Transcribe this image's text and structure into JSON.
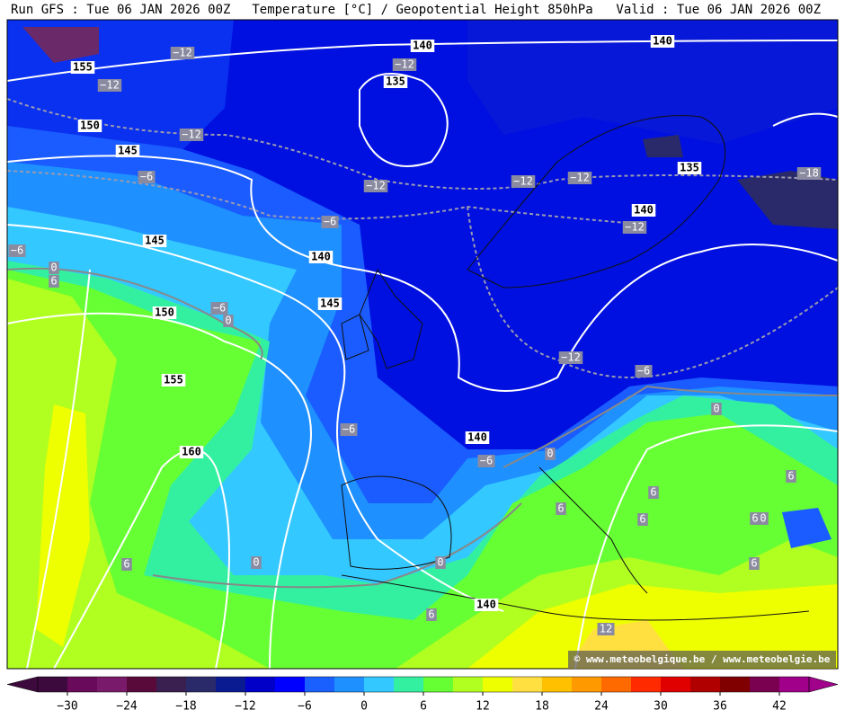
{
  "header": {
    "left": "Run GFS : Tue 06 JAN 2026 00Z",
    "center": "Temperature [°C] / Geopotential Height 850hPa",
    "right": "Valid : Tue 06 JAN 2026 00Z"
  },
  "map": {
    "watermark": "© www.meteobelgique.be / www.meteobelgie.be",
    "height_labels": [
      "140",
      "140",
      "135",
      "155",
      "150",
      "145",
      "135",
      "140",
      "145",
      "140",
      "145",
      "150",
      "155",
      "140",
      "160",
      "140"
    ],
    "temperature_labels": [
      "−12",
      "−12",
      "−12",
      "−12",
      "−6",
      "−12",
      "−12",
      "−12",
      "−18",
      "−12",
      "−6",
      "−6",
      "0",
      "6",
      "−6",
      "0",
      "−12",
      "−6",
      "0",
      "−6",
      "−6",
      "0",
      "6",
      "6",
      "6",
      "6",
      "6",
      "0",
      "0",
      "0",
      "6",
      "6",
      "6",
      "12"
    ]
  },
  "colorbar": {
    "labels": [
      "−30",
      "−24",
      "−18",
      "−12",
      "−6",
      "0",
      "6",
      "12",
      "18",
      "24",
      "30",
      "36",
      "42"
    ],
    "colors": [
      "#3d0a3d",
      "#6a0a5a",
      "#7a1a6a",
      "#5a0a3a",
      "#3a2050",
      "#2a2a6a",
      "#0a1a90",
      "#0000c8",
      "#0000ff",
      "#1a60ff",
      "#1e90ff",
      "#33c8ff",
      "#33f0a0",
      "#66ff33",
      "#b0ff20",
      "#eeff00",
      "#ffe040",
      "#ffc000",
      "#ff9900",
      "#ff6a00",
      "#ff2a00",
      "#e00000",
      "#b00000",
      "#800000",
      "#7a0050",
      "#a0008a"
    ]
  }
}
